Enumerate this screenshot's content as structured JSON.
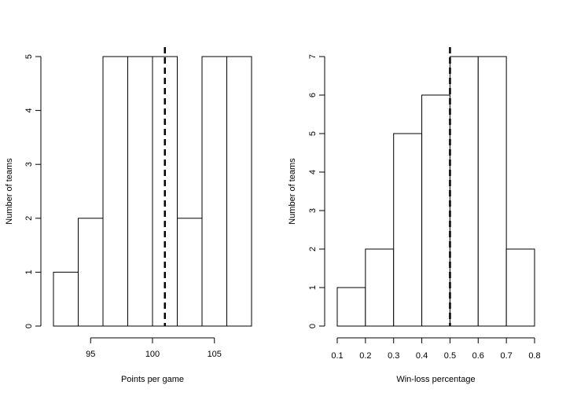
{
  "chart_data": [
    {
      "type": "bar",
      "xlabel": "Points per game",
      "ylabel": "Number of teams",
      "bins": [
        [
          92,
          94
        ],
        [
          94,
          96
        ],
        [
          96,
          98
        ],
        [
          98,
          100
        ],
        [
          100,
          102
        ],
        [
          102,
          104
        ],
        [
          104,
          106
        ],
        [
          106,
          108
        ]
      ],
      "values": [
        1,
        2,
        5,
        5,
        5,
        2,
        5,
        5
      ],
      "xlim": [
        92,
        108
      ],
      "ylim": [
        0,
        5
      ],
      "xticks": [
        95,
        100,
        105
      ],
      "xtick_labels": [
        "95",
        "100",
        "105"
      ],
      "yticks": [
        0,
        1,
        2,
        3,
        4,
        5
      ],
      "ytick_labels": [
        "0",
        "1",
        "2",
        "3",
        "4",
        "5"
      ],
      "vline": 101,
      "grid": false
    },
    {
      "type": "bar",
      "xlabel": "Win-loss percentage",
      "ylabel": "Number of teams",
      "bins": [
        [
          0.1,
          0.2
        ],
        [
          0.2,
          0.3
        ],
        [
          0.3,
          0.4
        ],
        [
          0.4,
          0.5
        ],
        [
          0.5,
          0.6
        ],
        [
          0.6,
          0.7
        ],
        [
          0.7,
          0.8
        ]
      ],
      "values": [
        1,
        2,
        5,
        6,
        7,
        7,
        2
      ],
      "xlim": [
        0.1,
        0.8
      ],
      "ylim": [
        0,
        7
      ],
      "xticks": [
        0.1,
        0.2,
        0.3,
        0.4,
        0.5,
        0.6,
        0.7,
        0.8
      ],
      "xtick_labels": [
        "0.1",
        "0.2",
        "0.3",
        "0.4",
        "0.5",
        "0.6",
        "0.7",
        "0.8"
      ],
      "yticks": [
        0,
        1,
        2,
        3,
        4,
        5,
        6,
        7
      ],
      "ytick_labels": [
        "0",
        "1",
        "2",
        "3",
        "4",
        "5",
        "6",
        "7"
      ],
      "vline": 0.5,
      "grid": false
    }
  ]
}
